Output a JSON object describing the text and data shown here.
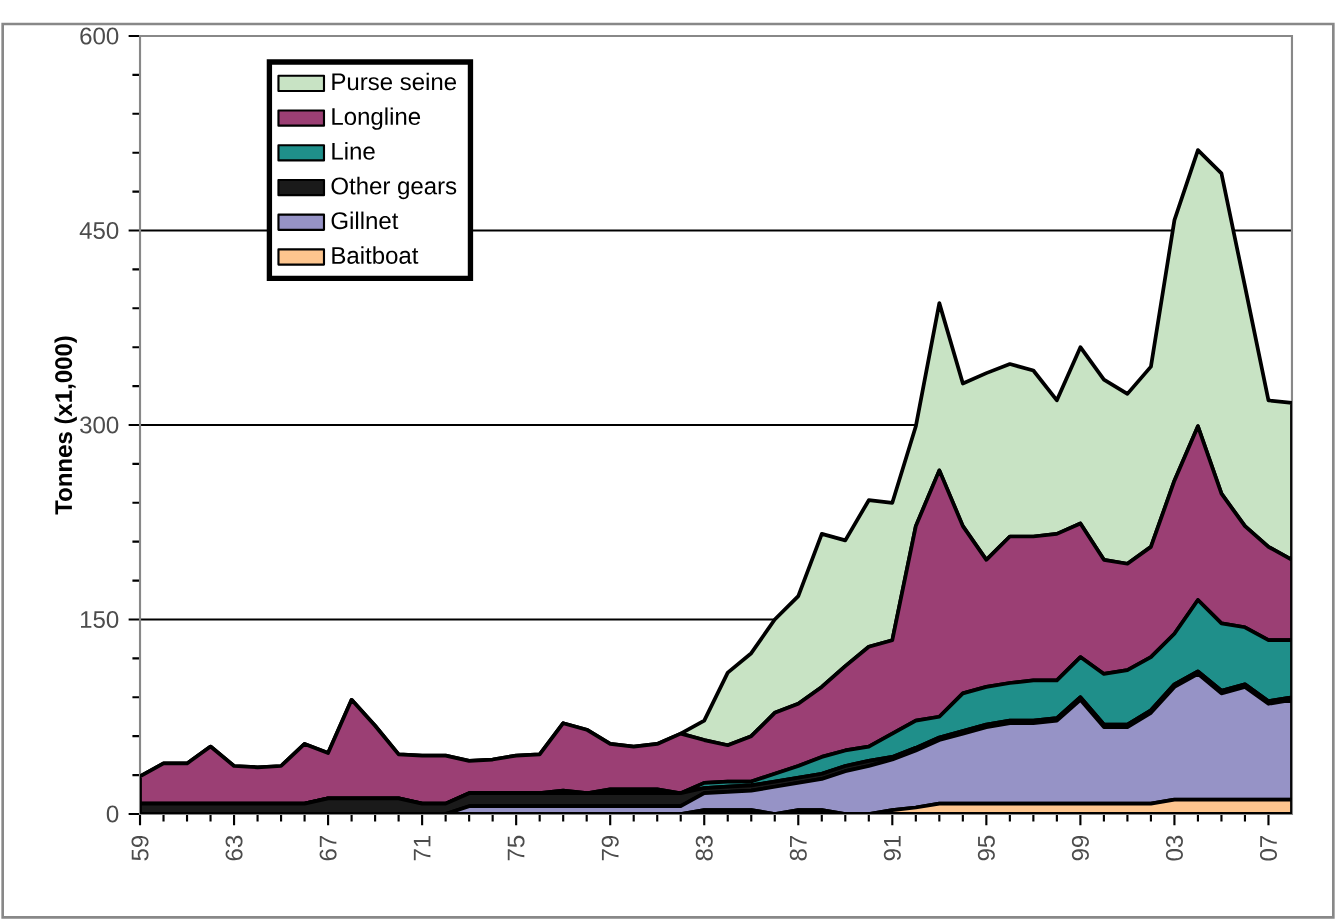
{
  "chart_data": {
    "type": "area",
    "stacked": true,
    "ylabel": "Tonnes (x1,000)",
    "x": [
      1959,
      1960,
      1961,
      1962,
      1963,
      1964,
      1965,
      1966,
      1967,
      1968,
      1969,
      1970,
      1971,
      1972,
      1973,
      1974,
      1975,
      1976,
      1977,
      1978,
      1979,
      1980,
      1981,
      1982,
      1983,
      1984,
      1985,
      1986,
      1987,
      1988,
      1989,
      1990,
      1991,
      1992,
      1993,
      1994,
      1995,
      1996,
      1997,
      1998,
      1999,
      2000,
      2001,
      2002,
      2003,
      2004,
      2005,
      2006,
      2007,
      2008
    ],
    "series": [
      {
        "name": "Baitboat",
        "color": "#fdc58e",
        "values": [
          0,
          0,
          0,
          0,
          0,
          0,
          0,
          0,
          0,
          0,
          0,
          0,
          0,
          0,
          0,
          0,
          0,
          0,
          0,
          0,
          0,
          0,
          0,
          0,
          3,
          3,
          3,
          0,
          3,
          3,
          0,
          0,
          3,
          5,
          8,
          8,
          8,
          8,
          8,
          8,
          8,
          8,
          8,
          8,
          11,
          11,
          11,
          11,
          11,
          11
        ]
      },
      {
        "name": "Gillnet",
        "color": "#9693c6",
        "values": [
          0,
          0,
          0,
          0,
          0,
          0,
          0,
          0,
          0,
          0,
          0,
          0,
          0,
          0,
          6,
          6,
          6,
          6,
          6,
          6,
          6,
          6,
          6,
          6,
          13,
          14,
          15,
          21,
          21,
          24,
          33,
          37,
          39,
          44,
          49,
          54,
          59,
          62,
          62,
          64,
          80,
          59,
          59,
          70,
          87,
          97,
          82,
          87,
          74,
          77
        ]
      },
      {
        "name": "Other gears",
        "color": "#1a1a1a",
        "values": [
          8,
          8,
          8,
          8,
          8,
          8,
          8,
          8,
          12,
          12,
          12,
          12,
          8,
          8,
          10,
          10,
          10,
          10,
          10,
          10,
          10,
          10,
          10,
          10,
          4,
          4,
          4,
          4,
          4,
          4,
          4,
          4,
          2,
          2,
          2,
          2,
          2,
          2,
          2,
          2,
          2,
          2,
          2,
          2,
          2,
          2,
          2,
          2,
          2,
          2
        ]
      },
      {
        "name": "Line",
        "color": "#1f8f8a",
        "values": [
          0,
          0,
          0,
          0,
          0,
          0,
          0,
          0,
          0,
          0,
          0,
          0,
          0,
          0,
          0,
          0,
          0,
          0,
          2,
          0,
          3,
          3,
          3,
          0,
          4,
          4,
          3,
          6,
          9,
          13,
          12,
          11,
          18,
          21,
          16,
          29,
          29,
          29,
          31,
          29,
          31,
          39,
          42,
          41,
          39,
          55,
          52,
          44,
          47,
          44
        ]
      },
      {
        "name": "Longline",
        "color": "#9b3f74",
        "values": [
          21,
          31,
          31,
          44,
          29,
          28,
          29,
          46,
          35,
          76,
          56,
          34,
          37,
          37,
          25,
          26,
          29,
          30,
          52,
          49,
          35,
          33,
          35,
          46,
          33,
          28,
          35,
          47,
          48,
          54,
          65,
          77,
          72,
          150,
          190,
          129,
          98,
          113,
          111,
          113,
          103,
          88,
          82,
          85,
          118,
          134,
          100,
          78,
          72,
          62
        ]
      },
      {
        "name": "Purse seine",
        "color": "#c8e3c4",
        "values": [
          0,
          0,
          0,
          0,
          0,
          0,
          0,
          0,
          0,
          0,
          0,
          0,
          0,
          0,
          0,
          0,
          0,
          0,
          0,
          0,
          0,
          0,
          0,
          0,
          15,
          56,
          64,
          72,
          83,
          118,
          97,
          113,
          106,
          77,
          129,
          110,
          144,
          133,
          128,
          103,
          136,
          139,
          131,
          139,
          201,
          213,
          247,
          185,
          113,
          121
        ]
      }
    ],
    "xlim": [
      1959,
      2008
    ],
    "xticks": [
      {
        "value": 1959,
        "label": "59"
      },
      {
        "value": 1963,
        "label": "63"
      },
      {
        "value": 1967,
        "label": "67"
      },
      {
        "value": 1971,
        "label": "71"
      },
      {
        "value": 1975,
        "label": "75"
      },
      {
        "value": 1979,
        "label": "79"
      },
      {
        "value": 1983,
        "label": "83"
      },
      {
        "value": 1987,
        "label": "87"
      },
      {
        "value": 1991,
        "label": "91"
      },
      {
        "value": 1995,
        "label": "95"
      },
      {
        "value": 1999,
        "label": "99"
      },
      {
        "value": 2003,
        "label": "03"
      },
      {
        "value": 2007,
        "label": "07"
      }
    ],
    "ylim": [
      0,
      600
    ],
    "yticks": [
      0,
      150,
      300,
      450,
      600
    ],
    "grid": "y",
    "legend": "top left"
  }
}
